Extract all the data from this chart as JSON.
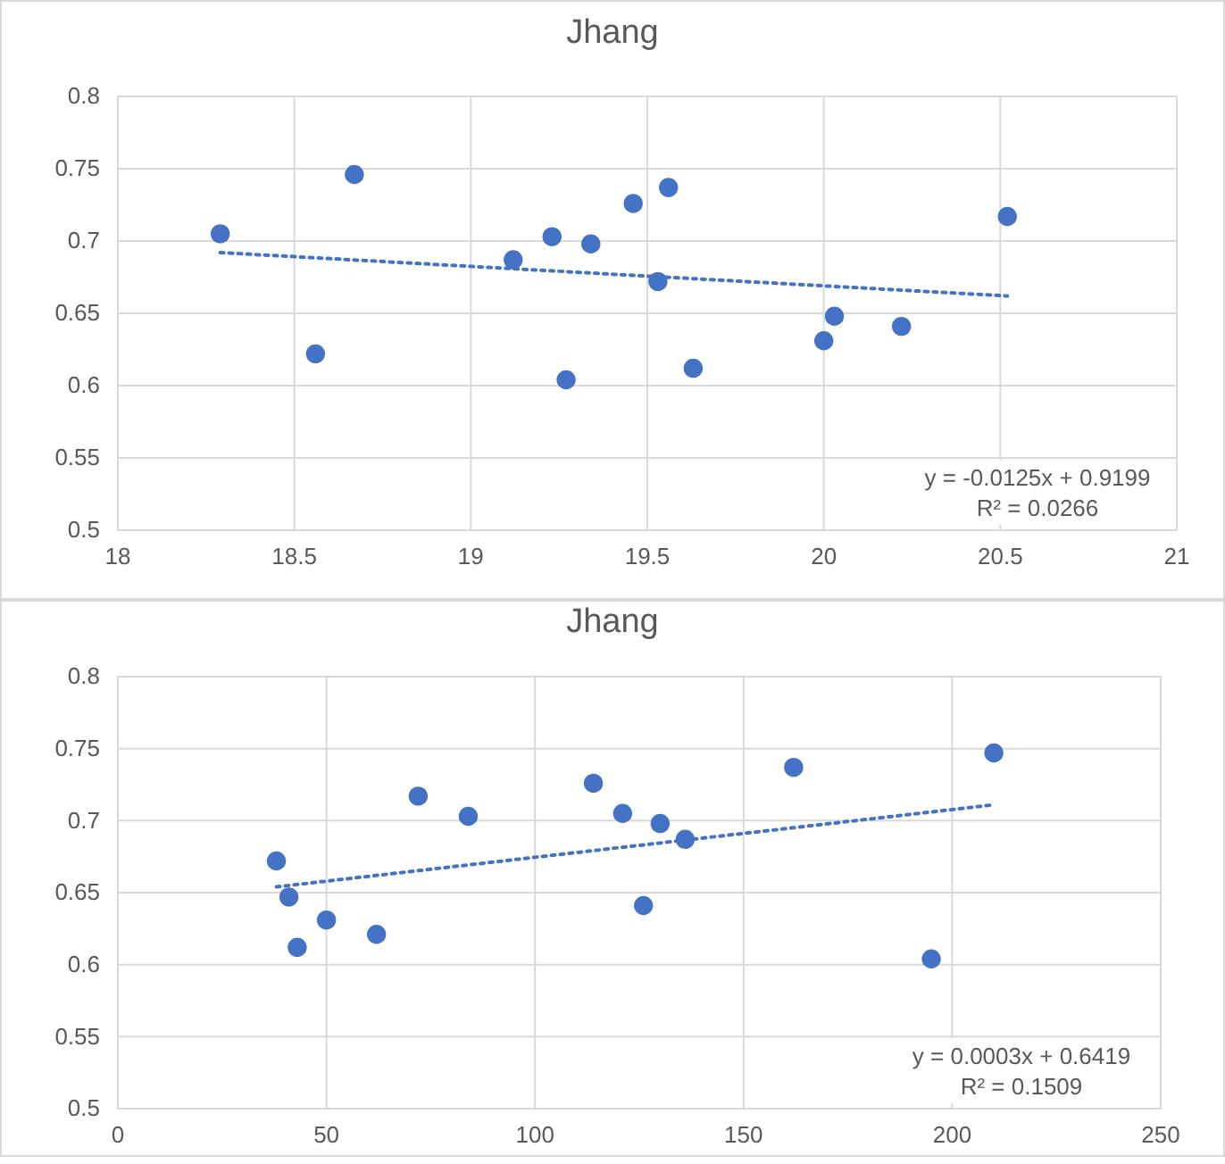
{
  "chart_data": [
    {
      "type": "scatter",
      "title": "Jhang",
      "grid": true,
      "xlim": [
        18,
        21
      ],
      "xticks": [
        18,
        18.5,
        19,
        19.5,
        20,
        20.5,
        21
      ],
      "ylim": [
        0.5,
        0.8
      ],
      "yticks": [
        0.5,
        0.55,
        0.6,
        0.65,
        0.7,
        0.75,
        0.8
      ],
      "series": [
        {
          "marker": "circle",
          "color": "#4472c4",
          "x": [
            18.29,
            18.56,
            18.67,
            19.12,
            19.23,
            19.27,
            19.34,
            19.46,
            19.53,
            19.56,
            19.63,
            20.0,
            20.03,
            20.22,
            20.52
          ],
          "values": [
            0.705,
            0.622,
            0.746,
            0.687,
            0.703,
            0.604,
            0.698,
            0.726,
            0.672,
            0.737,
            0.612,
            0.631,
            0.648,
            0.641,
            0.717
          ]
        },
        {
          "type": "line",
          "line_style": "dotted",
          "marker": "none",
          "color": "#4472c4",
          "x": [
            18.29,
            20.52
          ],
          "values": [
            0.692,
            0.662
          ]
        }
      ],
      "annotations": [
        "y = -0.0125x + 0.9199",
        "R² = 0.0266"
      ]
    },
    {
      "type": "scatter",
      "title": "Jhang",
      "grid": true,
      "xlim": [
        0,
        250
      ],
      "xticks": [
        0,
        50,
        100,
        150,
        200,
        250
      ],
      "ylim": [
        0.5,
        0.8
      ],
      "yticks": [
        0.5,
        0.55,
        0.6,
        0.65,
        0.7,
        0.75,
        0.8
      ],
      "series": [
        {
          "marker": "circle",
          "color": "#4472c4",
          "x": [
            38,
            41,
            43,
            50,
            62,
            72,
            84,
            114,
            121,
            126,
            130,
            136,
            162,
            195,
            210
          ],
          "values": [
            0.672,
            0.647,
            0.612,
            0.631,
            0.621,
            0.717,
            0.703,
            0.726,
            0.705,
            0.641,
            0.698,
            0.687,
            0.737,
            0.604,
            0.747
          ]
        },
        {
          "type": "line",
          "line_style": "dotted",
          "marker": "none",
          "color": "#4472c4",
          "x": [
            38,
            210
          ],
          "values": [
            0.654,
            0.711
          ]
        }
      ],
      "annotations": [
        "y = 0.0003x + 0.6419",
        "R² = 0.1509"
      ]
    }
  ]
}
